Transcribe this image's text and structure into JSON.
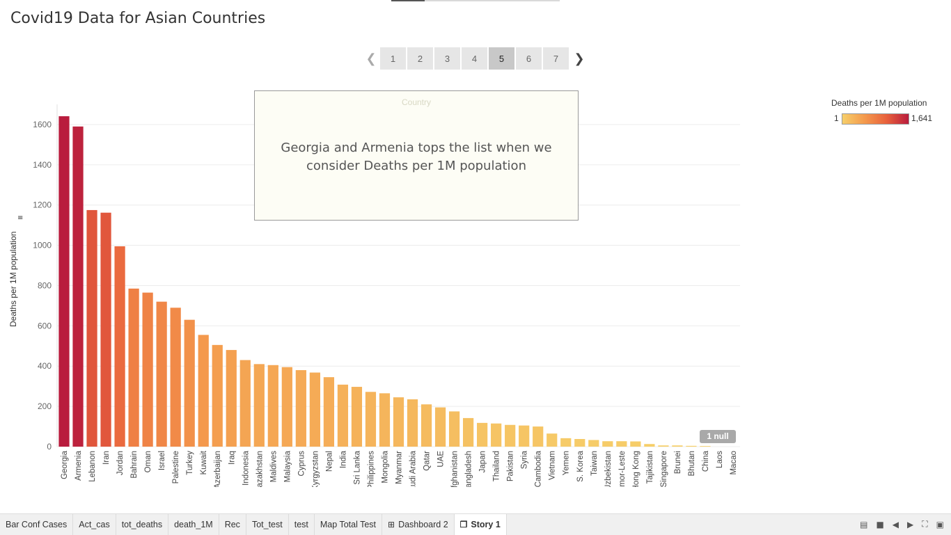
{
  "title": "Covid19 Data for Asian Countries",
  "nav": {
    "prev_icon": "chevron-left-icon",
    "next_icon": "chevron-right-icon",
    "pages": [
      "1",
      "2",
      "3",
      "4",
      "5",
      "6",
      "7"
    ],
    "active_page": "5"
  },
  "annotation": {
    "header": "Country",
    "text": "Georgia  and Armenia tops the list when we consider Deaths per 1M population"
  },
  "legend": {
    "title": "Deaths per 1M population",
    "min_label": "1",
    "max_label": "1,641",
    "colors": [
      "#f6cf6a",
      "#b91c3d"
    ]
  },
  "null_badge": "1 null",
  "tabs": [
    {
      "label": "Bar Conf Cases"
    },
    {
      "label": "Act_cas"
    },
    {
      "label": "tot_deaths"
    },
    {
      "label": "death_1M"
    },
    {
      "label": "Rec"
    },
    {
      "label": "Tot_test"
    },
    {
      "label": "test"
    },
    {
      "label": "Map  Total Test"
    },
    {
      "label": "Dashboard 2",
      "icon": "dashboard-icon"
    },
    {
      "label": "Story 1",
      "icon": "story-icon",
      "active": true
    }
  ],
  "chart_data": {
    "type": "bar",
    "title": "",
    "xlabel": "",
    "ylabel": "Deaths per 1M population",
    "ylim": [
      0,
      1700
    ],
    "yticks": [
      0,
      200,
      400,
      600,
      800,
      1000,
      1200,
      1400,
      1600
    ],
    "grid": true,
    "legend_position": "top-right",
    "color_range": [
      "#f6cf6a",
      "#b91c3d"
    ],
    "categories": [
      "Georgia",
      "Armenia",
      "Lebanon",
      "Iran",
      "Jordan",
      "Bahrain",
      "Oman",
      "Israel",
      "Palestine",
      "Turkey",
      "Kuwait",
      "Azerbaijan",
      "Iraq",
      "Indonesia",
      "Kazakhstan",
      "Maldives",
      "Malaysia",
      "Cyprus",
      "Kyrgyzstan",
      "Nepal",
      "India",
      "Sri Lanka",
      "Philippines",
      "Mongolia",
      "Myanmar",
      "Saudi Arabia",
      "Qatar",
      "UAE",
      "Afghanistan",
      "Bangladesh",
      "Japan",
      "Thailand",
      "Pakistan",
      "Syria",
      "Cambodia",
      "Vietnam",
      "Yemen",
      "S. Korea",
      "Taiwan",
      "Uzbekistan",
      "Timor-Leste",
      "Hong Kong",
      "Tajikistan",
      "Singapore",
      "Brunei",
      "Bhutan",
      "China",
      "Laos",
      "Macao"
    ],
    "values": [
      1641,
      1590,
      1175,
      1162,
      995,
      785,
      765,
      720,
      690,
      630,
      555,
      505,
      480,
      430,
      410,
      405,
      395,
      380,
      368,
      345,
      308,
      297,
      272,
      265,
      245,
      235,
      210,
      195,
      175,
      142,
      118,
      115,
      108,
      105,
      100,
      65,
      42,
      38,
      33,
      27,
      27,
      26,
      13,
      6,
      6,
      4,
      3,
      null,
      null
    ]
  }
}
